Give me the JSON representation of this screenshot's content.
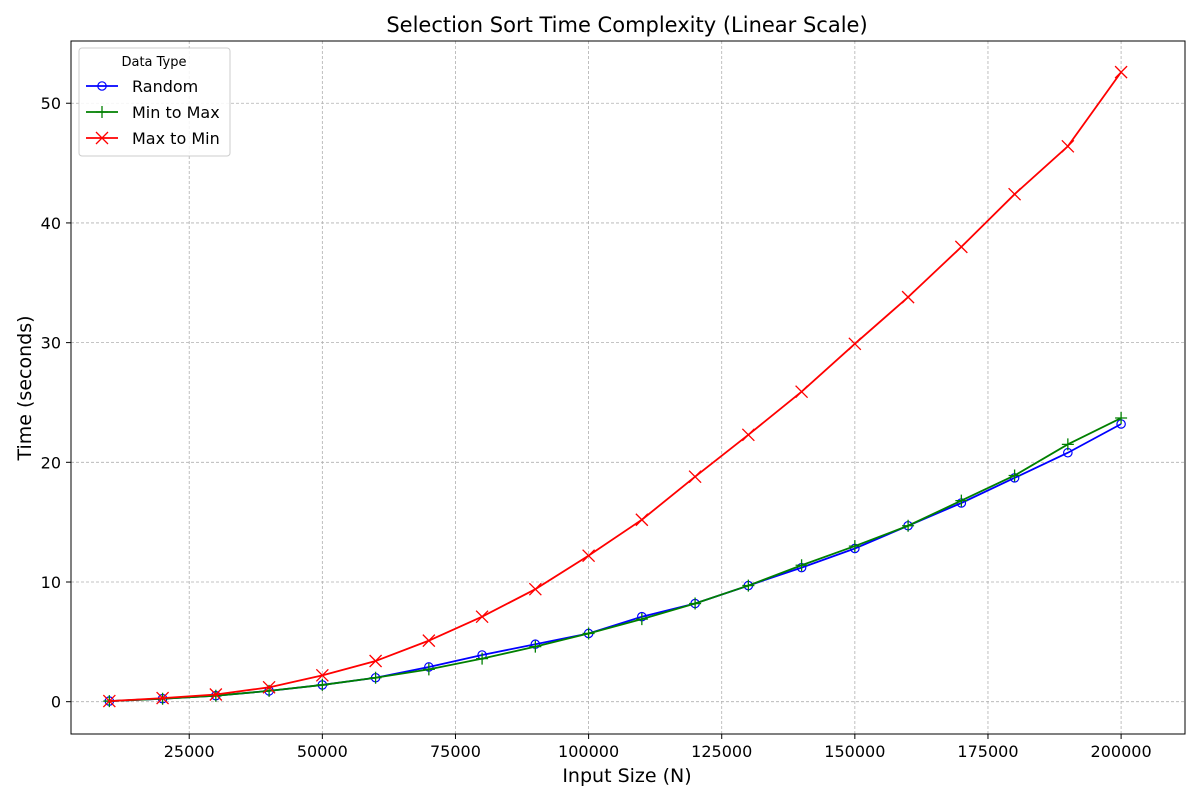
{
  "chart_data": {
    "type": "line",
    "title": "Selection Sort Time Complexity (Linear Scale)",
    "xlabel": "Input Size (N)",
    "ylabel": "Time (seconds)",
    "xlim": [
      2800,
      212000
    ],
    "ylim": [
      -2.7,
      55.2
    ],
    "xticks": [
      25000,
      50000,
      75000,
      100000,
      125000,
      150000,
      175000,
      200000
    ],
    "yticks": [
      0,
      10,
      20,
      30,
      40,
      50
    ],
    "grid": true,
    "legend_title": "Data Type",
    "legend_position": "top-left",
    "x": [
      10000,
      20000,
      30000,
      40000,
      50000,
      60000,
      70000,
      80000,
      90000,
      100000,
      110000,
      120000,
      130000,
      140000,
      150000,
      160000,
      170000,
      180000,
      190000,
      200000
    ],
    "series": [
      {
        "name": "Random",
        "color": "#0000ff",
        "marker": "circle",
        "values": [
          0.05,
          0.25,
          0.5,
          0.9,
          1.4,
          2.0,
          2.9,
          3.9,
          4.8,
          5.7,
          7.1,
          8.2,
          9.7,
          11.2,
          12.8,
          14.7,
          16.6,
          18.7,
          20.8,
          23.2
        ]
      },
      {
        "name": "Min to Max",
        "color": "#008000",
        "marker": "plus",
        "values": [
          0.05,
          0.25,
          0.5,
          0.9,
          1.4,
          2.0,
          2.7,
          3.6,
          4.6,
          5.7,
          6.9,
          8.2,
          9.7,
          11.4,
          13.0,
          14.7,
          16.8,
          18.9,
          21.5,
          23.7
        ]
      },
      {
        "name": "Max to Min",
        "color": "#ff0000",
        "marker": "x",
        "values": [
          0.05,
          0.3,
          0.6,
          1.2,
          2.2,
          3.4,
          5.1,
          7.1,
          9.4,
          12.2,
          15.2,
          18.8,
          22.3,
          25.9,
          29.9,
          33.8,
          38.0,
          42.4,
          46.4,
          52.6
        ]
      }
    ]
  }
}
